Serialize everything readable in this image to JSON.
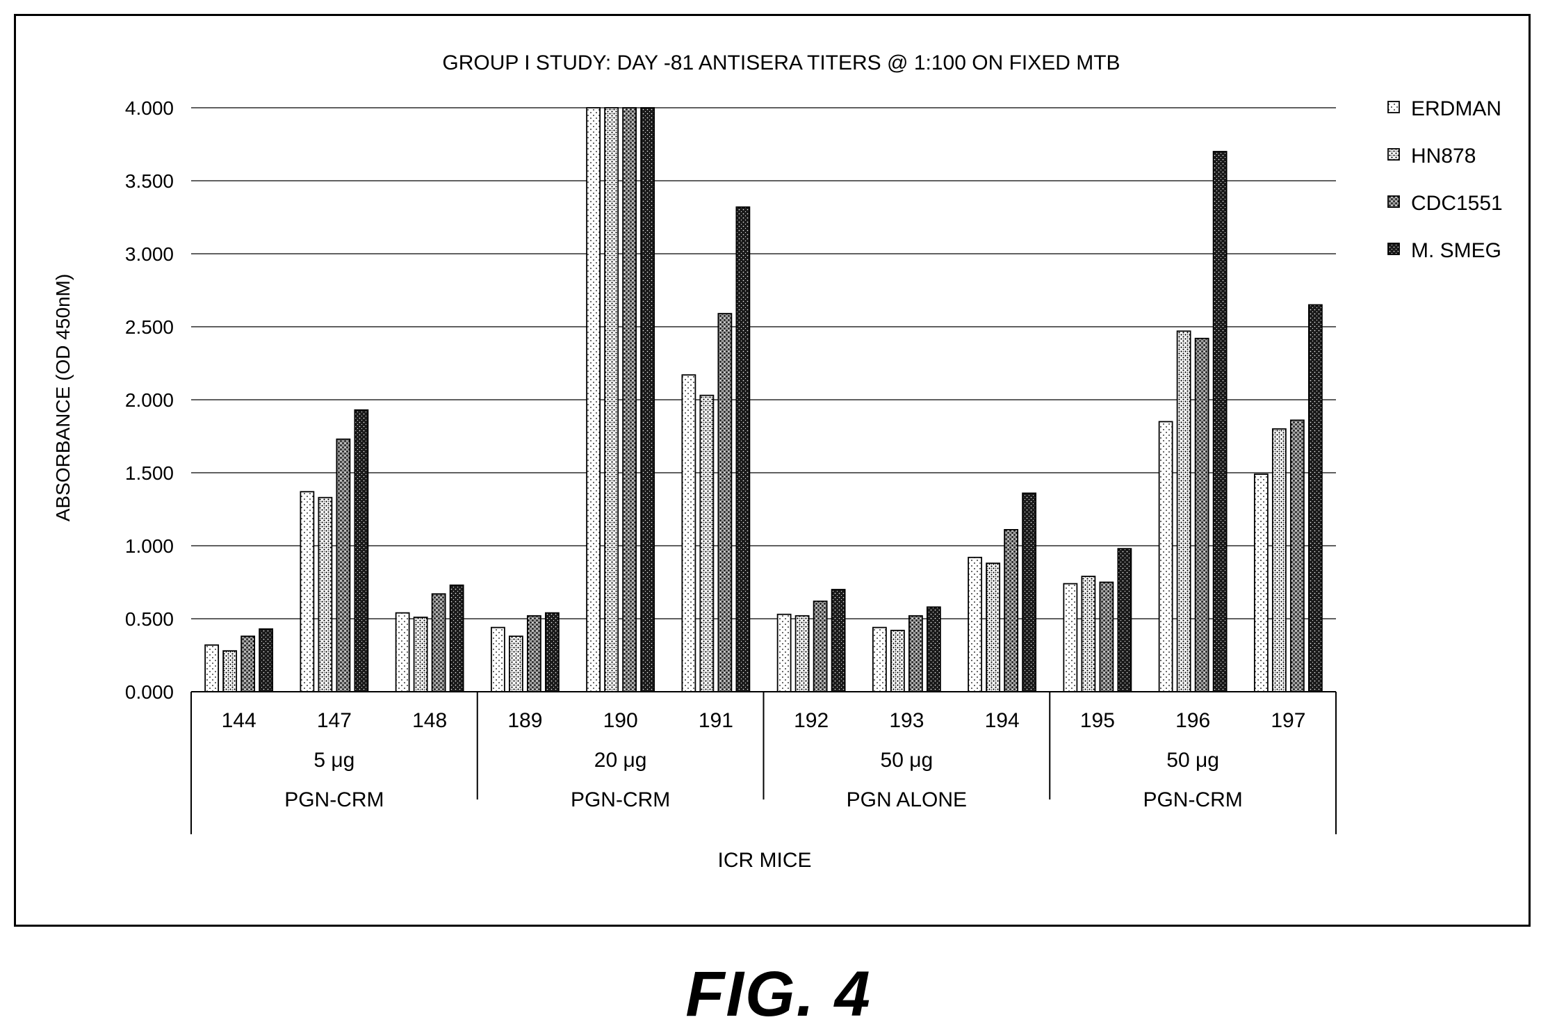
{
  "figure_label": "FIG. 4",
  "chart_data": {
    "type": "bar",
    "title": "GROUP I STUDY: DAY -81 ANTISERA TITERS @ 1:100 ON FIXED MTB",
    "xlabel": "ICR MICE",
    "ylabel": "ABSORBANCE (OD 450nM)",
    "ylim": [
      0,
      4
    ],
    "yticks": [
      "0.000",
      "0.500",
      "1.000",
      "1.500",
      "2.000",
      "2.500",
      "3.000",
      "3.500",
      "4.000"
    ],
    "grid": true,
    "legend_position": "right",
    "categories": [
      "144",
      "147",
      "148",
      "189",
      "190",
      "191",
      "192",
      "193",
      "194",
      "195",
      "196",
      "197"
    ],
    "groups": [
      {
        "dose": "5 μg",
        "label": "PGN-CRM",
        "categories": [
          "144",
          "147",
          "148"
        ]
      },
      {
        "dose": "20 μg",
        "label": "PGN-CRM",
        "categories": [
          "189",
          "190",
          "191"
        ]
      },
      {
        "dose": "50 μg",
        "label": "PGN ALONE",
        "categories": [
          "192",
          "193",
          "194"
        ]
      },
      {
        "dose": "50 μg",
        "label": "PGN-CRM",
        "categories": [
          "195",
          "196",
          "197"
        ]
      }
    ],
    "series": [
      {
        "name": "ERDMAN",
        "pattern": "light",
        "values": [
          0.32,
          1.37,
          0.54,
          0.44,
          4.0,
          2.17,
          0.53,
          0.44,
          0.92,
          0.74,
          1.85,
          1.49
        ]
      },
      {
        "name": "HN878",
        "pattern": "medium",
        "values": [
          0.28,
          1.33,
          0.51,
          0.38,
          4.0,
          2.03,
          0.52,
          0.42,
          0.88,
          0.79,
          2.47,
          1.8
        ]
      },
      {
        "name": "CDC1551",
        "pattern": "dense",
        "values": [
          0.38,
          1.73,
          0.67,
          0.52,
          4.0,
          2.59,
          0.62,
          0.52,
          1.11,
          0.75,
          2.42,
          1.86
        ]
      },
      {
        "name": "M. SMEG",
        "pattern": "dark",
        "values": [
          0.43,
          1.93,
          0.73,
          0.54,
          4.0,
          3.32,
          0.7,
          0.58,
          1.36,
          0.98,
          3.7,
          2.65
        ]
      }
    ]
  }
}
